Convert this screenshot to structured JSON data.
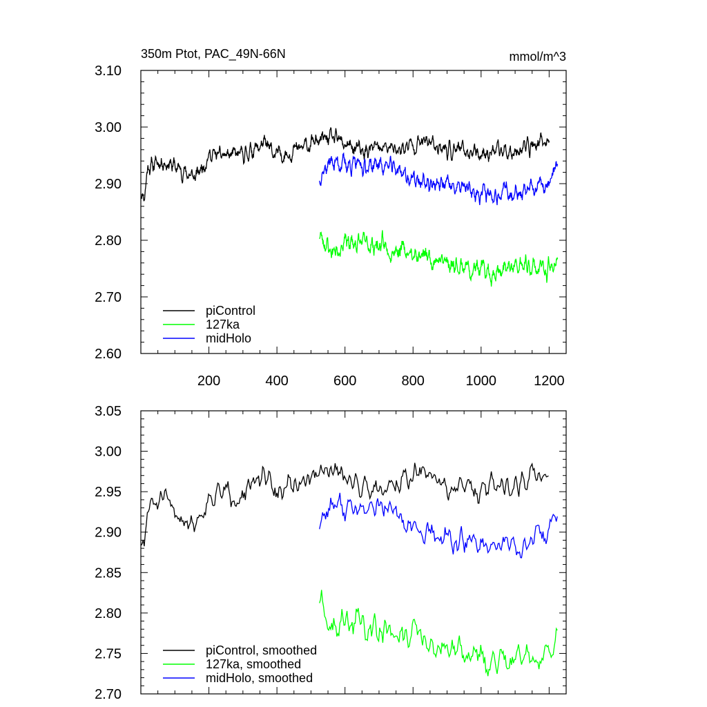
{
  "chart_data": [
    {
      "type": "line",
      "title": "350m Ptot, PAC_49N-66N",
      "units_label": "mmol/m^3",
      "xlim": [
        0,
        1250
      ],
      "ylim": [
        2.6,
        3.1
      ],
      "xticks": [
        200,
        400,
        600,
        800,
        1000,
        1200
      ],
      "xtick_labels": [
        "200",
        "400",
        "600",
        "800",
        "1000",
        "1200"
      ],
      "yticks": [
        2.6,
        2.7,
        2.8,
        2.9,
        3.0,
        3.1
      ],
      "ytick_labels": [
        "2.60",
        "2.70",
        "2.80",
        "2.90",
        "3.00",
        "3.10"
      ],
      "legend": {
        "position": "bottom-left",
        "entries": [
          "piControl",
          "127ka",
          "midHolo"
        ]
      },
      "series": [
        {
          "name": "piControl",
          "color": "#000000",
          "x_start": 1,
          "x_end": 1200,
          "step": 1,
          "seed": 11,
          "anchors": [
            [
              1,
              2.89
            ],
            [
              10,
              2.875
            ],
            [
              20,
              2.93
            ],
            [
              60,
              2.94
            ],
            [
              100,
              2.93
            ],
            [
              160,
              2.91
            ],
            [
              200,
              2.95
            ],
            [
              300,
              2.95
            ],
            [
              360,
              2.97
            ],
            [
              400,
              2.95
            ],
            [
              460,
              2.96
            ],
            [
              520,
              2.975
            ],
            [
              560,
              2.98
            ],
            [
              600,
              2.97
            ],
            [
              650,
              2.955
            ],
            [
              700,
              2.965
            ],
            [
              760,
              2.96
            ],
            [
              800,
              2.97
            ],
            [
              850,
              2.975
            ],
            [
              900,
              2.96
            ],
            [
              1000,
              2.955
            ],
            [
              1100,
              2.96
            ],
            [
              1200,
              2.975
            ]
          ],
          "noise": 0.018,
          "smooth_k": 2
        },
        {
          "name": "127ka",
          "color": "#00ff00",
          "x_start": 525,
          "x_end": 1225,
          "step": 1,
          "seed": 23,
          "anchors": [
            [
              525,
              2.81
            ],
            [
              560,
              2.78
            ],
            [
              600,
              2.795
            ],
            [
              650,
              2.795
            ],
            [
              700,
              2.79
            ],
            [
              760,
              2.785
            ],
            [
              800,
              2.775
            ],
            [
              850,
              2.77
            ],
            [
              900,
              2.76
            ],
            [
              950,
              2.755
            ],
            [
              1000,
              2.745
            ],
            [
              1050,
              2.745
            ],
            [
              1100,
              2.75
            ],
            [
              1150,
              2.755
            ],
            [
              1200,
              2.745
            ],
            [
              1225,
              2.77
            ]
          ],
          "noise": 0.022,
          "smooth_k": 2
        },
        {
          "name": "midHolo",
          "color": "#0000ff",
          "x_start": 525,
          "x_end": 1225,
          "step": 1,
          "seed": 37,
          "anchors": [
            [
              525,
              2.915
            ],
            [
              560,
              2.94
            ],
            [
              600,
              2.935
            ],
            [
              650,
              2.93
            ],
            [
              700,
              2.935
            ],
            [
              760,
              2.925
            ],
            [
              800,
              2.905
            ],
            [
              850,
              2.9
            ],
            [
              900,
              2.895
            ],
            [
              1000,
              2.885
            ],
            [
              1100,
              2.885
            ],
            [
              1150,
              2.885
            ],
            [
              1200,
              2.9
            ],
            [
              1225,
              2.93
            ]
          ],
          "noise": 0.02,
          "smooth_k": 2
        }
      ]
    },
    {
      "type": "line",
      "title": "",
      "units_label": "",
      "xlim": [
        0,
        1250
      ],
      "ylim": [
        2.7,
        3.05
      ],
      "xticks": [
        200,
        400,
        600,
        800,
        1000,
        1200
      ],
      "xtick_labels": [],
      "yticks": [
        2.7,
        2.75,
        2.8,
        2.85,
        2.9,
        2.95,
        3.0,
        3.05
      ],
      "ytick_labels": [
        "2.70",
        "2.75",
        "2.80",
        "2.85",
        "2.90",
        "2.95",
        "3.00",
        "3.05"
      ],
      "legend": {
        "position": "bottom-left",
        "entries": [
          "piControl, smoothed",
          "127ka, smoothed",
          "midHolo, smoothed"
        ]
      },
      "series": [
        {
          "name": "piControl, smoothed",
          "color": "#000000",
          "x_start": 1,
          "x_end": 1200,
          "step": 3,
          "seed": 51,
          "anchors": [
            [
              1,
              2.88
            ],
            [
              10,
              2.88
            ],
            [
              20,
              2.93
            ],
            [
              60,
              2.94
            ],
            [
              100,
              2.925
            ],
            [
              160,
              2.91
            ],
            [
              200,
              2.945
            ],
            [
              300,
              2.95
            ],
            [
              360,
              2.965
            ],
            [
              400,
              2.95
            ],
            [
              460,
              2.96
            ],
            [
              520,
              2.97
            ],
            [
              560,
              2.975
            ],
            [
              600,
              2.97
            ],
            [
              650,
              2.955
            ],
            [
              700,
              2.96
            ],
            [
              760,
              2.96
            ],
            [
              800,
              2.97
            ],
            [
              850,
              2.975
            ],
            [
              900,
              2.955
            ],
            [
              1000,
              2.955
            ],
            [
              1100,
              2.96
            ],
            [
              1200,
              2.975
            ]
          ],
          "noise": 0.014,
          "smooth_k": 1
        },
        {
          "name": "127ka, smoothed",
          "color": "#00ff00",
          "x_start": 525,
          "x_end": 1225,
          "step": 3,
          "seed": 63,
          "anchors": [
            [
              525,
              2.805
            ],
            [
              560,
              2.78
            ],
            [
              600,
              2.79
            ],
            [
              650,
              2.79
            ],
            [
              700,
              2.785
            ],
            [
              760,
              2.78
            ],
            [
              800,
              2.775
            ],
            [
              850,
              2.765
            ],
            [
              900,
              2.755
            ],
            [
              950,
              2.75
            ],
            [
              1000,
              2.74
            ],
            [
              1050,
              2.74
            ],
            [
              1100,
              2.745
            ],
            [
              1150,
              2.75
            ],
            [
              1200,
              2.745
            ],
            [
              1225,
              2.775
            ]
          ],
          "noise": 0.018,
          "smooth_k": 1
        },
        {
          "name": "midHolo, smoothed",
          "color": "#0000ff",
          "x_start": 525,
          "x_end": 1225,
          "step": 3,
          "seed": 77,
          "anchors": [
            [
              525,
              2.915
            ],
            [
              560,
              2.935
            ],
            [
              600,
              2.93
            ],
            [
              650,
              2.925
            ],
            [
              700,
              2.93
            ],
            [
              760,
              2.92
            ],
            [
              800,
              2.9
            ],
            [
              850,
              2.895
            ],
            [
              900,
              2.89
            ],
            [
              1000,
              2.885
            ],
            [
              1100,
              2.885
            ],
            [
              1150,
              2.885
            ],
            [
              1200,
              2.9
            ],
            [
              1225,
              2.93
            ]
          ],
          "noise": 0.015,
          "smooth_k": 1
        }
      ]
    }
  ]
}
